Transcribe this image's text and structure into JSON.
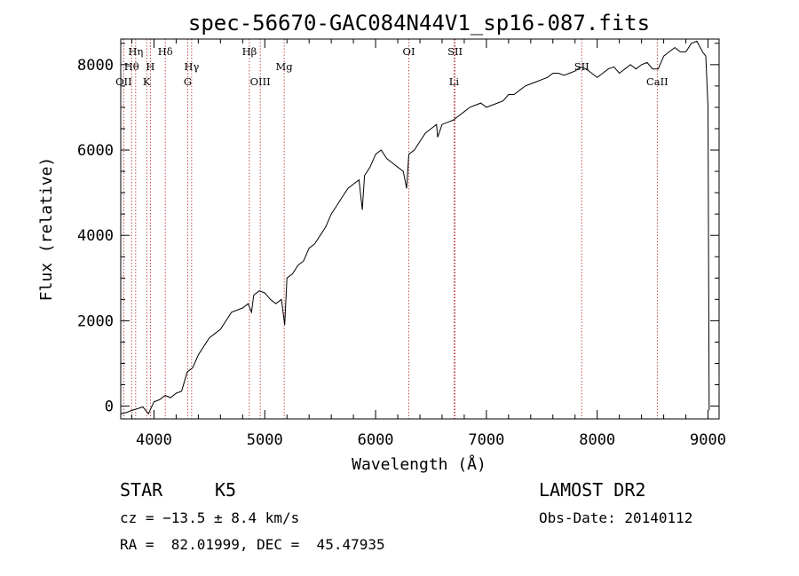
{
  "chart_data": {
    "type": "line",
    "title": "spec-56670-GAC084N44V1_sp16-087.fits",
    "xlabel": "Wavelength (Å)",
    "ylabel": "Flux (relative)",
    "xlim": [
      3700,
      9100
    ],
    "ylim": [
      -300,
      8600
    ],
    "xticks": [
      4000,
      5000,
      6000,
      7000,
      8000,
      9000
    ],
    "yticks": [
      0,
      2000,
      4000,
      6000,
      8000
    ],
    "series": [
      {
        "x": [
          3700,
          3750,
          3800,
          3850,
          3900,
          3950,
          4000,
          4050,
          4100,
          4150,
          4200,
          4250,
          4300,
          4350,
          4400,
          4450,
          4500,
          4550,
          4600,
          4650,
          4700,
          4750,
          4800,
          4850,
          4880,
          4900,
          4950,
          5000,
          5050,
          5100,
          5150,
          5180,
          5200,
          5250,
          5300,
          5350,
          5400,
          5450,
          5500,
          5550,
          5600,
          5650,
          5700,
          5750,
          5800,
          5850,
          5880,
          5900,
          5950,
          6000,
          6050,
          6100,
          6150,
          6200,
          6250,
          6280,
          6300,
          6350,
          6400,
          6450,
          6500,
          6550,
          6560,
          6600,
          6650,
          6700,
          6750,
          6800,
          6850,
          6900,
          6950,
          7000,
          7050,
          7100,
          7150,
          7200,
          7250,
          7300,
          7350,
          7400,
          7450,
          7500,
          7550,
          7600,
          7650,
          7700,
          7750,
          7800,
          7850,
          7900,
          7950,
          8000,
          8050,
          8100,
          8150,
          8200,
          8250,
          8300,
          8350,
          8400,
          8450,
          8500,
          8550,
          8600,
          8650,
          8700,
          8750,
          8800,
          8850,
          8900,
          8950,
          8980,
          9000,
          9010
        ],
        "y": [
          -180,
          -150,
          -100,
          -60,
          -20,
          -180,
          100,
          150,
          250,
          200,
          300,
          350,
          800,
          900,
          1200,
          1400,
          1600,
          1700,
          1800,
          2000,
          2200,
          2250,
          2300,
          2400,
          2200,
          2600,
          2700,
          2650,
          2500,
          2400,
          2500,
          1900,
          3000,
          3100,
          3300,
          3400,
          3700,
          3800,
          4000,
          4200,
          4500,
          4700,
          4900,
          5100,
          5200,
          5300,
          4600,
          5400,
          5600,
          5900,
          6000,
          5800,
          5700,
          5600,
          5500,
          5100,
          5900,
          6000,
          6200,
          6400,
          6500,
          6600,
          6300,
          6600,
          6650,
          6700,
          6800,
          6900,
          7000,
          7050,
          7100,
          7000,
          7050,
          7100,
          7150,
          7300,
          7300,
          7400,
          7500,
          7550,
          7600,
          7650,
          7700,
          7800,
          7800,
          7750,
          7800,
          7850,
          7950,
          7900,
          7800,
          7700,
          7800,
          7900,
          7950,
          7800,
          7900,
          8000,
          7900,
          8000,
          8050,
          7900,
          7900,
          8200,
          8300,
          8400,
          8300,
          8300,
          8500,
          8550,
          8300,
          8200,
          7000,
          -100
        ]
      }
    ],
    "lines": [
      {
        "name": "OII",
        "x": 3727,
        "row": 3
      },
      {
        "name": "Hη",
        "x": 3835,
        "row": 1
      },
      {
        "name": "Hθ",
        "x": 3798,
        "row": 2
      },
      {
        "name": "H",
        "x": 3968,
        "row": 2
      },
      {
        "name": "K",
        "x": 3934,
        "row": 3
      },
      {
        "name": "Hδ",
        "x": 4102,
        "row": 1
      },
      {
        "name": "Hγ",
        "x": 4340,
        "row": 2
      },
      {
        "name": "G",
        "x": 4305,
        "row": 3
      },
      {
        "name": "Hβ",
        "x": 4861,
        "row": 1
      },
      {
        "name": "OIII",
        "x": 4959,
        "row": 3
      },
      {
        "name": "Mg",
        "x": 5175,
        "row": 2
      },
      {
        "name": "OI",
        "x": 6300,
        "row": 1
      },
      {
        "name": "SII",
        "x": 6717,
        "row": 1
      },
      {
        "name": "Li",
        "x": 6708,
        "row": 3
      },
      {
        "name": "SII",
        "x": 7860,
        "row": 2
      },
      {
        "name": "CaII",
        "x": 8542,
        "row": 3
      }
    ]
  },
  "info": {
    "obj_class": "STAR",
    "subclass": "K5",
    "survey": "LAMOST DR2",
    "cz": "cz = −13.5 ± 8.4 km/s",
    "obs_date": "Obs-Date: 20140112",
    "radec": "RA =  82.01999, DEC =  45.47935"
  }
}
